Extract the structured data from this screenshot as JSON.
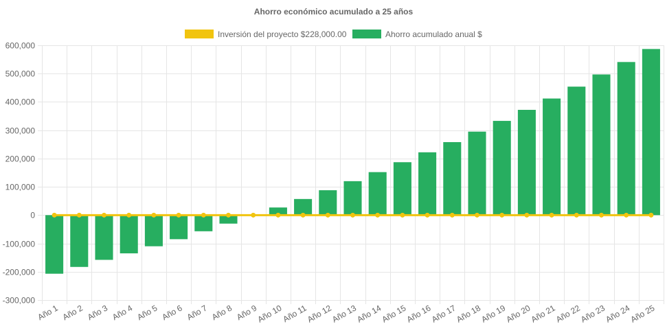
{
  "chart_data": {
    "type": "bar",
    "title": "Ahorro económico acumulado a 25 años",
    "categories": [
      "Año 1",
      "Año 2",
      "Año 3",
      "Año 4",
      "Año 5",
      "Año 6",
      "Año 7",
      "Año 8",
      "Año 9",
      "Año 10",
      "Año 11",
      "Año 12",
      "Año 13",
      "Año 14",
      "Año 15",
      "Año 16",
      "Año 17",
      "Año 18",
      "Año 19",
      "Año 20",
      "Año 21",
      "Año 22",
      "Año 23",
      "Año 24",
      "Año 25"
    ],
    "series": [
      {
        "name": "Inversión del proyecto $228,000.00",
        "type": "line",
        "color": "#f1c40f",
        "values": [
          0,
          0,
          0,
          0,
          0,
          0,
          0,
          0,
          0,
          0,
          0,
          0,
          0,
          0,
          0,
          0,
          0,
          0,
          0,
          0,
          0,
          0,
          0,
          0,
          0
        ]
      },
      {
        "name": "Ahorro acumulado anual $",
        "type": "bar",
        "color": "#27ae60",
        "values": [
          -207000,
          -183000,
          -158000,
          -135000,
          -110000,
          -85000,
          -57000,
          -30000,
          0,
          27000,
          57000,
          88000,
          120000,
          152000,
          187000,
          222000,
          258000,
          295000,
          333000,
          372000,
          412000,
          454000,
          497000,
          541000,
          587000
        ]
      }
    ],
    "ylim": [
      -300000,
      600000
    ],
    "yticks": [
      -300000,
      -200000,
      -100000,
      0,
      100000,
      200000,
      300000,
      400000,
      500000,
      600000
    ],
    "ytick_labels": [
      "-300,000",
      "-200,000",
      "-100,000",
      "0",
      "100,000",
      "200,000",
      "300,000",
      "400,000",
      "500,000",
      "600,000"
    ],
    "grid": true,
    "legend_position": "top"
  }
}
